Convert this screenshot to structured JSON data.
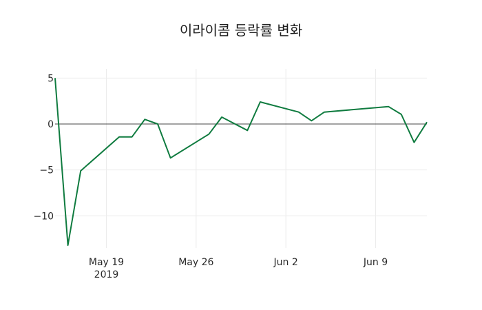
{
  "chart_data": {
    "type": "line",
    "title": "이라이콤 등락률 변화",
    "xlabel": "",
    "ylabel": "",
    "x": [
      "2019-05-15",
      "2019-05-16",
      "2019-05-17",
      "2019-05-20",
      "2019-05-21",
      "2019-05-22",
      "2019-05-23",
      "2019-05-24",
      "2019-05-27",
      "2019-05-28",
      "2019-05-30",
      "2019-05-31",
      "2019-06-03",
      "2019-06-04",
      "2019-06-05",
      "2019-06-10",
      "2019-06-11",
      "2019-06-12",
      "2019-06-13"
    ],
    "series": [
      {
        "name": "등락률",
        "color": "#0f7b3f",
        "values": [
          5.0,
          -13.2,
          -5.1,
          -1.4,
          -1.4,
          0.5,
          0.0,
          -3.7,
          -1.1,
          0.75,
          -0.7,
          2.4,
          1.3,
          0.35,
          1.3,
          1.9,
          1.05,
          -2.0,
          0.2
        ]
      }
    ],
    "x_ticks": [
      {
        "date": "2019-05-19",
        "label": "May 19",
        "sublabel": "2019"
      },
      {
        "date": "2019-05-26",
        "label": "May 26",
        "sublabel": ""
      },
      {
        "date": "2019-06-02",
        "label": "Jun 2",
        "sublabel": ""
      },
      {
        "date": "2019-06-09",
        "label": "Jun 9",
        "sublabel": ""
      }
    ],
    "y_ticks": [
      5,
      0,
      -5,
      -10
    ],
    "y_tick_labels": [
      "5",
      "0",
      "−5",
      "−10"
    ],
    "ylim": [
      -13.2,
      6.0
    ],
    "xlim": [
      "2019-05-15",
      "2019-06-13"
    ],
    "grid": true,
    "zero_line": true,
    "legend": "none"
  }
}
